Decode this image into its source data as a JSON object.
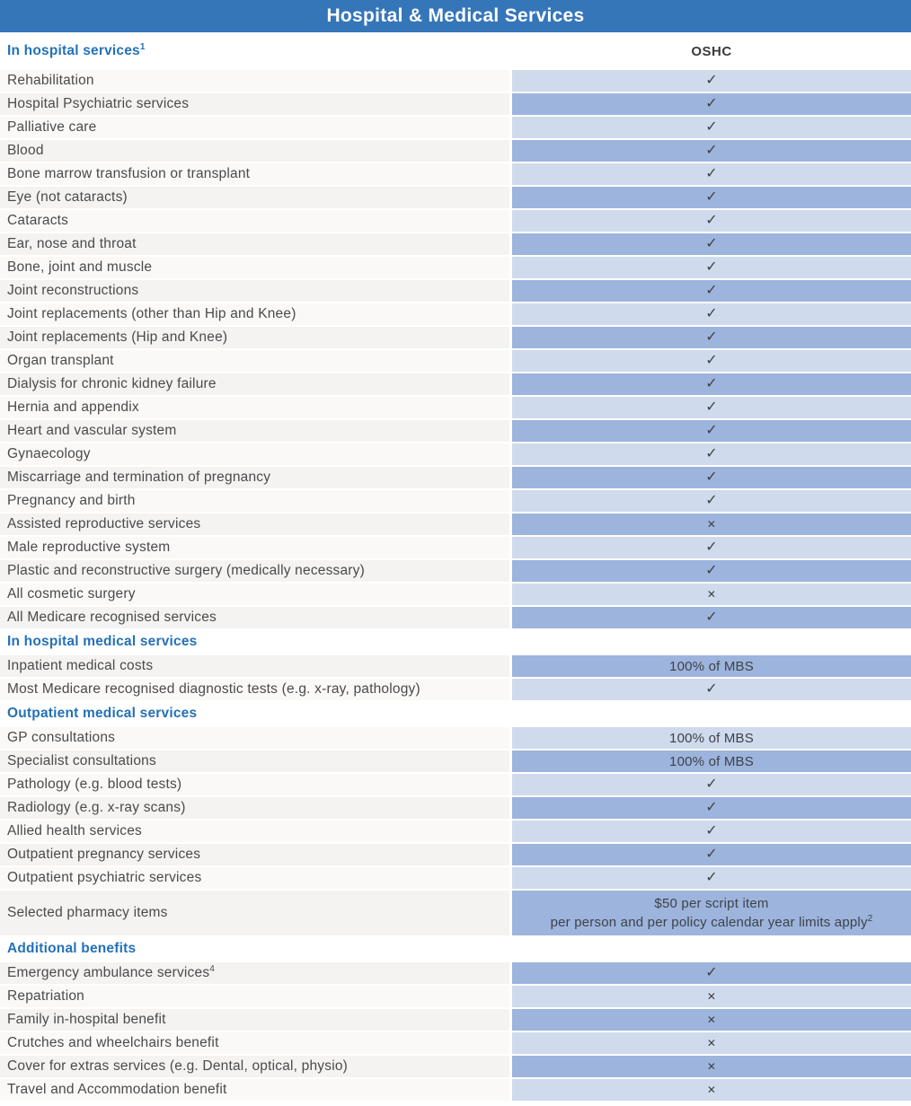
{
  "title": "Hospital & Medical Services",
  "column_header": "OSHC",
  "marks": {
    "check": "✓",
    "cross": "✕"
  },
  "colors": {
    "title_bar": "#3576b9",
    "heading_text": "#2471b7",
    "cell_blue_light": "#cfdaed",
    "cell_blue_dark": "#9db4dd",
    "cell_gray_light": "#faf9f7",
    "cell_gray_dark": "#f4f3f1"
  },
  "sections": [
    {
      "heading": "In hospital services",
      "heading_sup": "1",
      "show_column_header": true,
      "start_dark": false,
      "rows": [
        {
          "label": "Rehabilitation",
          "value": "check"
        },
        {
          "label": "Hospital Psychiatric services",
          "value": "check"
        },
        {
          "label": "Palliative care",
          "value": "check"
        },
        {
          "label": "Blood",
          "value": "check"
        },
        {
          "label": "Bone marrow transfusion or transplant",
          "value": "check"
        },
        {
          "label": "Eye (not cataracts)",
          "value": "check"
        },
        {
          "label": "Cataracts",
          "value": "check"
        },
        {
          "label": "Ear, nose and throat",
          "value": "check"
        },
        {
          "label": "Bone, joint and muscle",
          "value": "check"
        },
        {
          "label": "Joint reconstructions",
          "value": "check"
        },
        {
          "label": "Joint replacements (other than Hip and Knee)",
          "value": "check"
        },
        {
          "label": "Joint replacements (Hip and Knee)",
          "value": "check"
        },
        {
          "label": "Organ transplant",
          "value": "check"
        },
        {
          "label": "Dialysis for chronic kidney failure",
          "value": "check"
        },
        {
          "label": "Hernia and appendix",
          "value": "check"
        },
        {
          "label": "Heart and vascular system",
          "value": "check"
        },
        {
          "label": "Gynaecology",
          "value": "check"
        },
        {
          "label": "Miscarriage and termination of pregnancy",
          "value": "check"
        },
        {
          "label": "Pregnancy and birth",
          "value": "check"
        },
        {
          "label": "Assisted reproductive services",
          "value": "cross"
        },
        {
          "label": "Male reproductive system",
          "value": "check"
        },
        {
          "label": "Plastic and reconstructive surgery (medically necessary)",
          "value": "check"
        },
        {
          "label": "All cosmetic surgery",
          "value": "cross"
        },
        {
          "label": "All Medicare recognised services",
          "value": "check"
        }
      ]
    },
    {
      "heading": "In hospital medical services",
      "show_column_header": false,
      "start_dark": true,
      "rows": [
        {
          "label": "Inpatient medical costs",
          "value": "100% of MBS"
        },
        {
          "label": "Most Medicare recognised diagnostic tests (e.g. x-ray, pathology)",
          "value": "check"
        }
      ]
    },
    {
      "heading": "Outpatient medical services",
      "show_column_header": false,
      "start_dark": false,
      "rows": [
        {
          "label": "GP consultations",
          "value": "100% of MBS"
        },
        {
          "label": "Specialist consultations",
          "value": "100% of MBS"
        },
        {
          "label": "Pathology (e.g. blood tests)",
          "value": "check"
        },
        {
          "label": "Radiology (e.g. x-ray scans)",
          "value": "check"
        },
        {
          "label": "Allied health services",
          "value": "check"
        },
        {
          "label": "Outpatient pregnancy services",
          "value": "check"
        },
        {
          "label": "Outpatient psychiatric services",
          "value": "check"
        },
        {
          "label": "Selected pharmacy items",
          "value_lines": [
            "$50 per script item",
            "per person and per policy calendar year limits apply"
          ],
          "value_sup": "2"
        }
      ]
    },
    {
      "heading": "Additional benefits",
      "show_column_header": false,
      "start_dark": true,
      "rows": [
        {
          "label": "Emergency ambulance services",
          "label_sup": "4",
          "value": "check"
        },
        {
          "label": "Repatriation",
          "value": "cross"
        },
        {
          "label": "Family in-hospital benefit",
          "value": "cross"
        },
        {
          "label": "Crutches and wheelchairs benefit",
          "value": "cross"
        },
        {
          "label": "Cover for extras services (e.g. Dental, optical, physio)",
          "value": "cross"
        },
        {
          "label": "Travel and Accommodation benefit",
          "value": "cross"
        }
      ]
    }
  ]
}
